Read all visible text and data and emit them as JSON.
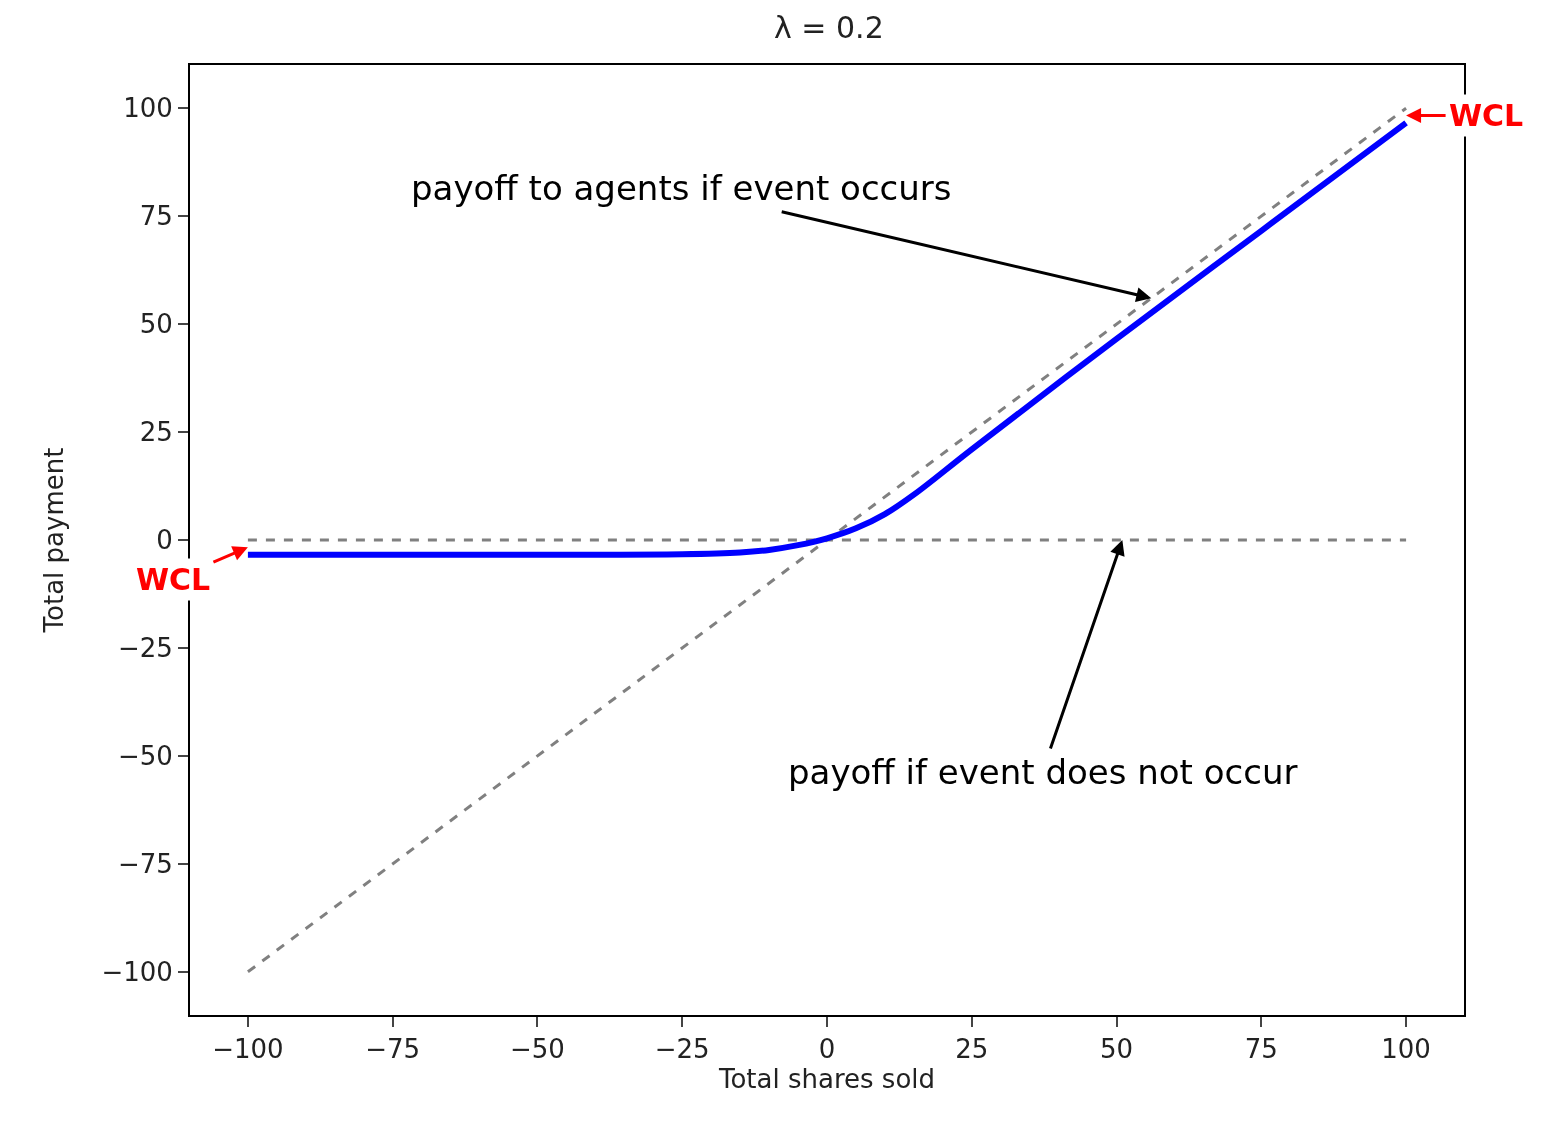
{
  "chart_data": {
    "type": "line",
    "title": "λ = 0.2",
    "xlabel": "Total shares sold",
    "ylabel": "Total payment",
    "xlim": [
      -110,
      110
    ],
    "ylim": [
      -110,
      110
    ],
    "xticks": [
      {
        "value": -100,
        "label": "−100"
      },
      {
        "value": -75,
        "label": "−75"
      },
      {
        "value": -50,
        "label": "−50"
      },
      {
        "value": -25,
        "label": "−25"
      },
      0,
      25,
      50,
      75,
      100
    ],
    "yticks": [
      {
        "value": -100,
        "label": "−100"
      },
      {
        "value": -75,
        "label": "−75"
      },
      {
        "value": -50,
        "label": "−50"
      },
      {
        "value": -25,
        "label": "−25"
      },
      0,
      25,
      50,
      75,
      100
    ],
    "series": [
      {
        "color": "#808080",
        "line_style": "dashed",
        "x": [
          -100,
          100
        ],
        "values": [
          -100,
          100
        ]
      },
      {
        "color": "#808080",
        "line_style": "dashed",
        "x": [
          -100,
          100
        ],
        "values": [
          0,
          0
        ]
      },
      {
        "color": "#0000ff",
        "line_style": "solid",
        "x": [
          -100,
          -50,
          -25,
          -15,
          -10,
          -5,
          0,
          5,
          10,
          15,
          25,
          50,
          75,
          100
        ],
        "values": [
          -3.4,
          -3.4,
          -3.3,
          -2.9,
          -2.3,
          -1.2,
          0.4,
          2.7,
          6,
          10.5,
          21,
          46.6,
          71.6,
          96.6
        ]
      }
    ],
    "annotations": [
      {
        "text": "payoff to agents if event occurs",
        "x": 56,
        "y": 56
      },
      {
        "text": "payoff if event does not occur",
        "x": 51,
        "y": 0
      },
      {
        "text": "WCL",
        "x": -100,
        "y": -1.7
      },
      {
        "text": "WCL",
        "x": 100,
        "y": 98.3
      }
    ]
  }
}
